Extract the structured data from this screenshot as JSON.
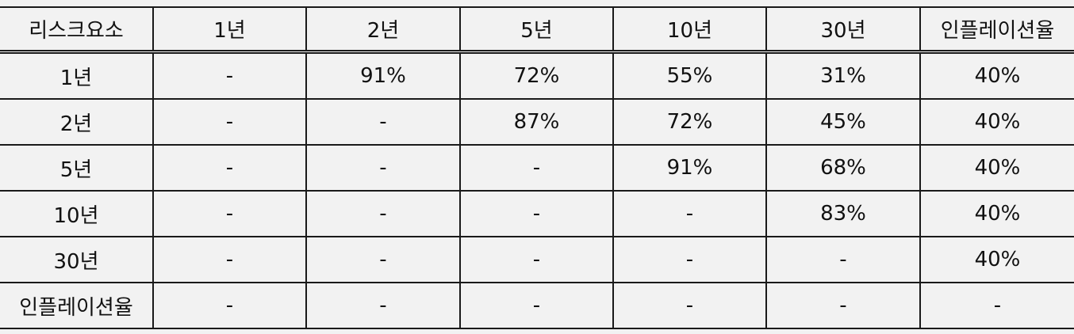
{
  "table": {
    "headers": [
      "리스크요소",
      "1년",
      "2년",
      "5년",
      "10년",
      "30년",
      "인플레이션율"
    ],
    "rows": [
      [
        "1년",
        "-",
        "91%",
        "72%",
        "55%",
        "31%",
        "40%"
      ],
      [
        "2년",
        "-",
        "-",
        "87%",
        "72%",
        "45%",
        "40%"
      ],
      [
        "5년",
        "-",
        "-",
        "-",
        "91%",
        "68%",
        "40%"
      ],
      [
        "10년",
        "-",
        "-",
        "-",
        "-",
        "83%",
        "40%"
      ],
      [
        "30년",
        "-",
        "-",
        "-",
        "-",
        "-",
        "40%"
      ],
      [
        "인플레이션율",
        "-",
        "-",
        "-",
        "-",
        "-",
        "-"
      ]
    ]
  }
}
